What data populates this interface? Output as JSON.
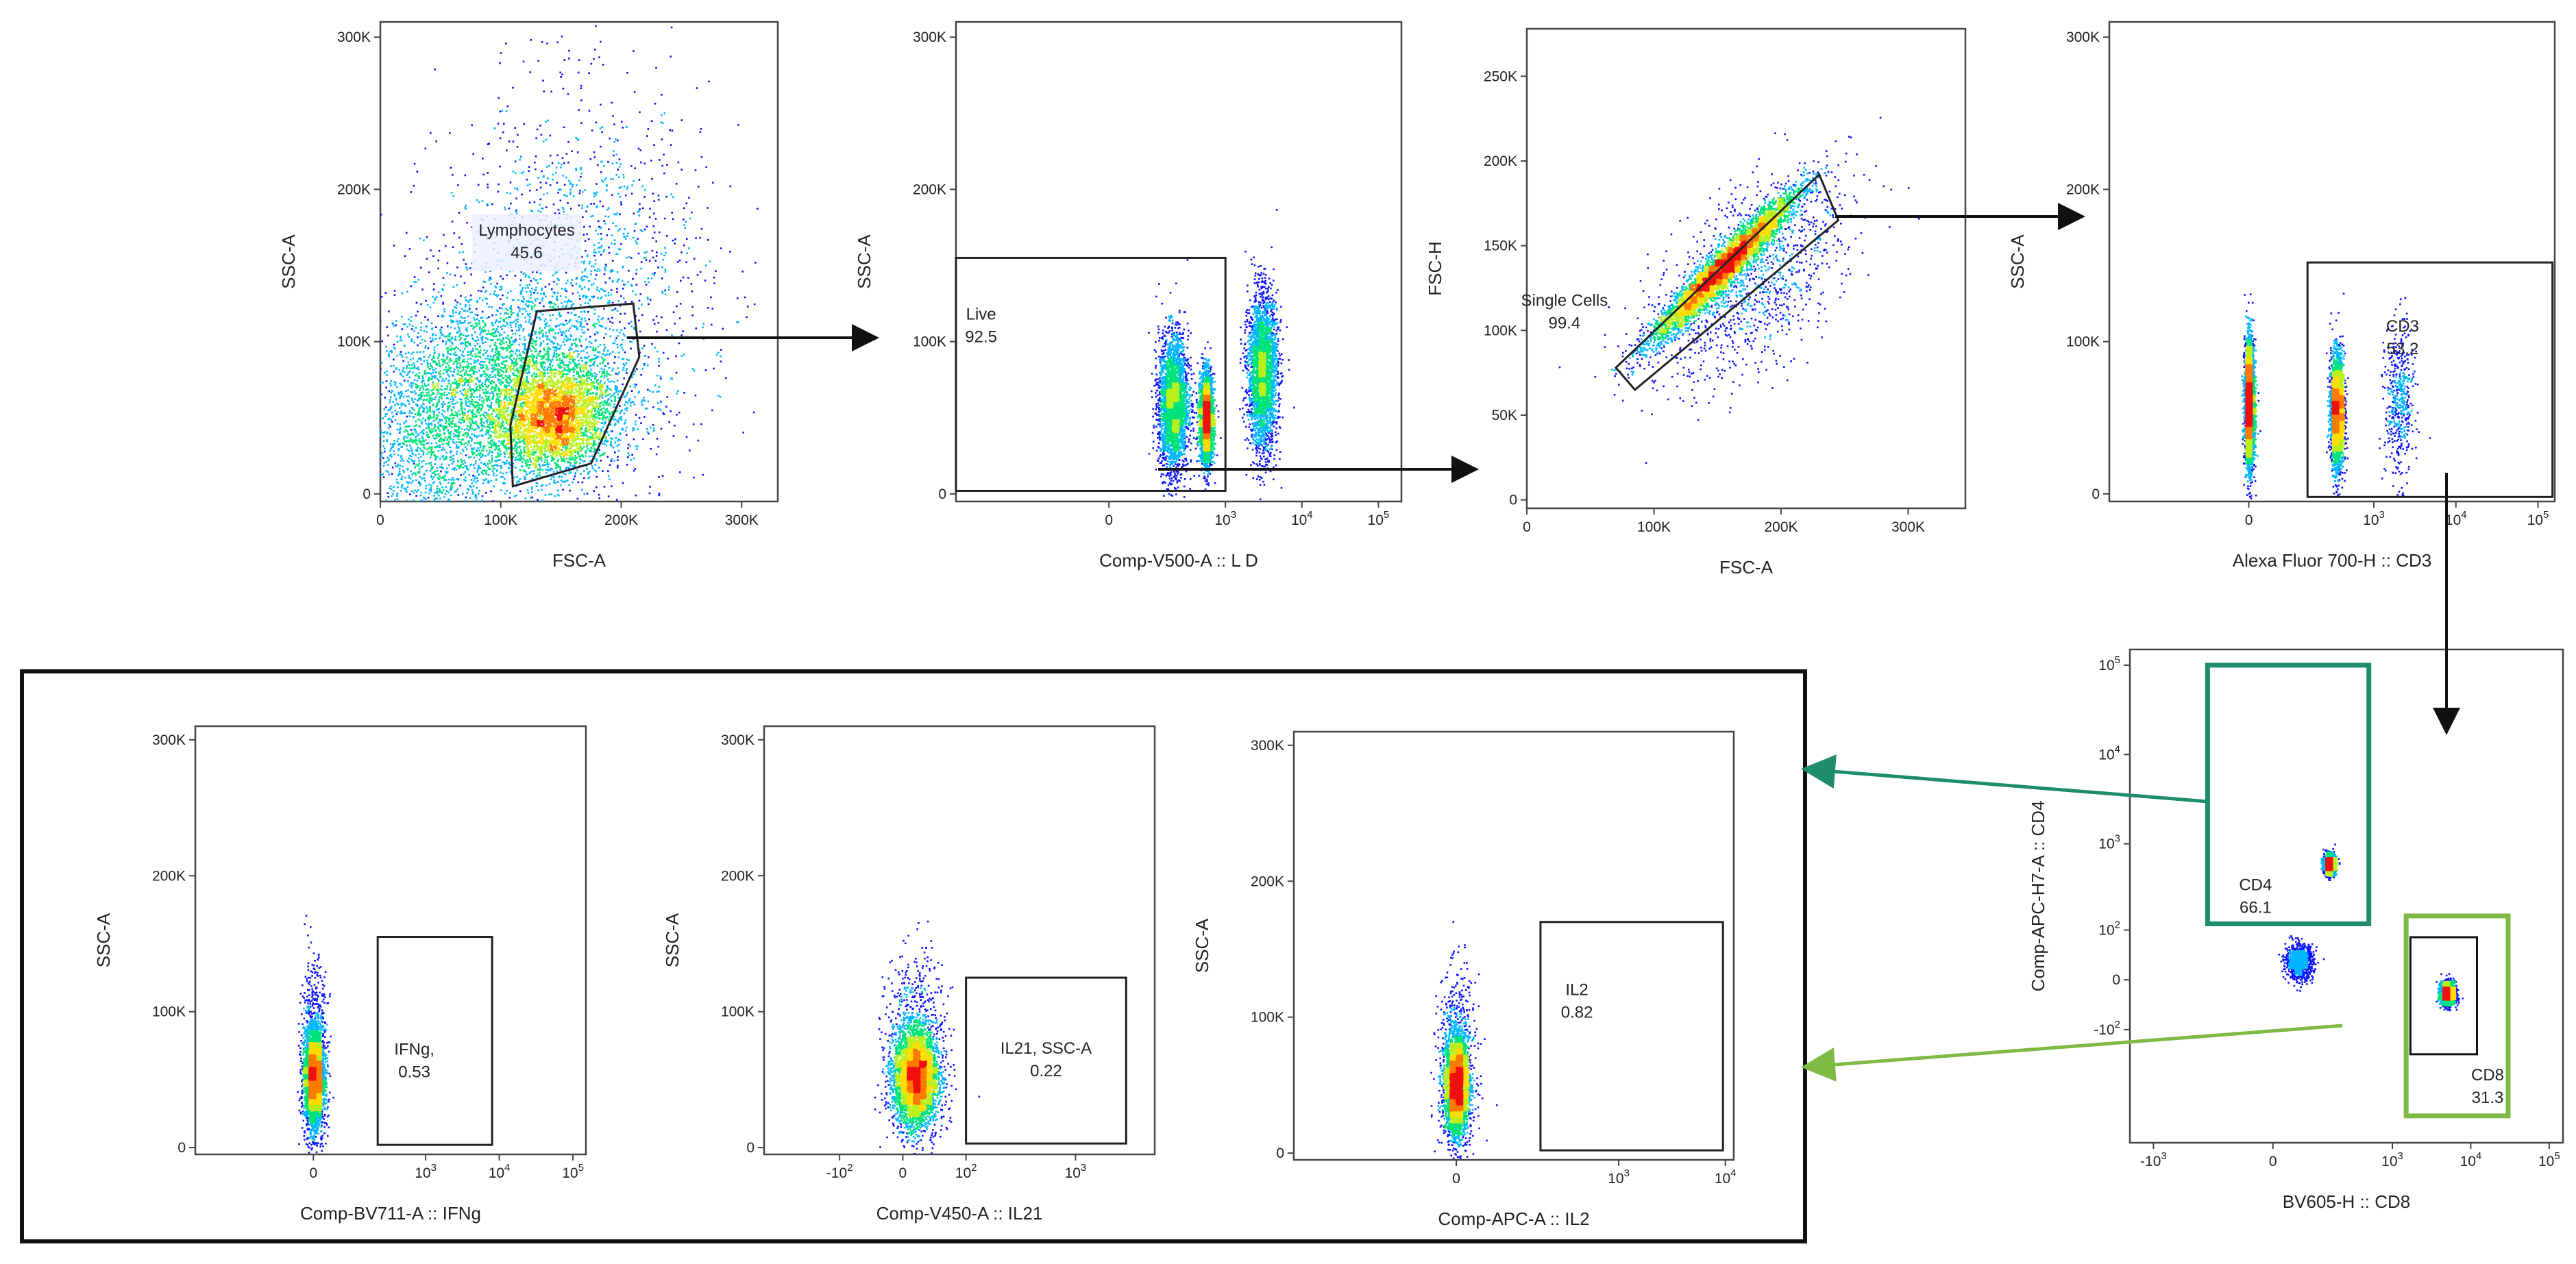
{
  "colors": {
    "density": [
      "#0a12ff",
      "#00b6ff",
      "#00e27a",
      "#b9ef1c",
      "#ffdd00",
      "#ff7a00",
      "#f01010"
    ],
    "arrow": "#111111",
    "cd4_gate": "#1f8c6e",
    "cd8_gate": "#7fba45"
  },
  "chart_data": [
    {
      "id": "p1",
      "type": "scatter",
      "xlabel": "FSC-A",
      "ylabel": "SSC-A",
      "xscale": "linear",
      "xlim": [
        0,
        330000
      ],
      "ylim": [
        -5000,
        310000
      ],
      "x_ticks": [
        {
          "v": 0,
          "label": "0"
        },
        {
          "v": 100000,
          "label": "100K"
        },
        {
          "v": 200000,
          "label": "200K"
        },
        {
          "v": 300000,
          "label": "300K"
        }
      ],
      "y_ticks": [
        {
          "v": 0,
          "label": "0"
        },
        {
          "v": 100000,
          "label": "100K"
        },
        {
          "v": 200000,
          "label": "200K"
        },
        {
          "v": 300000,
          "label": "300K"
        }
      ],
      "populations": [
        {
          "cx": 145000,
          "cy": 50000,
          "sx": 24000,
          "sy": 17000,
          "n": 3200,
          "rot": 0.2
        },
        {
          "cx": 95000,
          "cy": 70000,
          "sx": 48000,
          "sy": 32000,
          "n": 3000
        },
        {
          "cx": 160000,
          "cy": 130000,
          "sx": 55000,
          "sy": 65000,
          "n": 1800
        },
        {
          "cx": 40000,
          "cy": 30000,
          "sx": 30000,
          "sy": 35000,
          "n": 1200
        }
      ],
      "gate": {
        "name": "Lymphocytes",
        "value": "45.6",
        "shape": "polygon",
        "points": [
          [
            130000,
            120000
          ],
          [
            210000,
            125000
          ],
          [
            215000,
            90000
          ],
          [
            175000,
            20000
          ],
          [
            110000,
            5000
          ],
          [
            108000,
            45000
          ]
        ]
      }
    },
    {
      "id": "p2",
      "type": "scatter",
      "xlabel": "Comp-V500-A :: L  D",
      "ylabel": "SSC-A",
      "xscale": "biex",
      "xlim": [
        -3000,
        200000
      ],
      "ylim": [
        -5000,
        310000
      ],
      "x_ticks": [
        {
          "v": 0,
          "label": "0"
        },
        {
          "v": 1000,
          "label": "10",
          "exp": "3"
        },
        {
          "v": 10000,
          "label": "10",
          "exp": "4"
        },
        {
          "v": 100000,
          "label": "10",
          "exp": "5"
        }
      ],
      "y_ticks": [
        {
          "v": 0,
          "label": "0"
        },
        {
          "v": 100000,
          "label": "100K"
        },
        {
          "v": 200000,
          "label": "200K"
        },
        {
          "v": 300000,
          "label": "300K"
        }
      ],
      "populations": [
        {
          "cx": 550,
          "cy": 50000,
          "sx": 0.1,
          "sy": 14000,
          "n": 3200
        },
        {
          "cx": 200,
          "cy": 60000,
          "sx": 0.22,
          "sy": 22000,
          "n": 3000
        },
        {
          "cx": 3000,
          "cy": 80000,
          "sx": 0.22,
          "sy": 25000,
          "n": 3000
        }
      ],
      "gate": {
        "name": "Live",
        "value": "92.5",
        "shape": "rect",
        "x": [
          -3000,
          1000
        ],
        "y": [
          2000,
          155000
        ]
      }
    },
    {
      "id": "p3",
      "type": "scatter",
      "xlabel": "FSC-A",
      "ylabel": "FSC-H",
      "xscale": "linear",
      "xlim": [
        0,
        345000
      ],
      "ylim": [
        -5000,
        278000
      ],
      "x_ticks": [
        {
          "v": 0,
          "label": "0"
        },
        {
          "v": 100000,
          "label": "100K"
        },
        {
          "v": 200000,
          "label": "200K"
        },
        {
          "v": 300000,
          "label": "300K"
        }
      ],
      "y_ticks": [
        {
          "v": 0,
          "label": "0"
        },
        {
          "v": 50000,
          "label": "50K"
        },
        {
          "v": 100000,
          "label": "100K"
        },
        {
          "v": 150000,
          "label": "150K"
        },
        {
          "v": 200000,
          "label": "200K"
        },
        {
          "v": 250000,
          "label": "250K"
        }
      ],
      "populations": [
        {
          "cx": 155000,
          "cy": 138000,
          "sx": 38000,
          "sy": 4500,
          "n": 5000,
          "rot": 0.75
        },
        {
          "cx": 175000,
          "cy": 130000,
          "sx": 45000,
          "sy": 22000,
          "n": 1200,
          "rot": 0.75
        }
      ],
      "gate": {
        "name": "Single Cells",
        "value": "99.4",
        "shape": "polygon",
        "points": [
          [
            70000,
            78000
          ],
          [
            85000,
            65000
          ],
          [
            245000,
            165000
          ],
          [
            230000,
            192000
          ]
        ]
      }
    },
    {
      "id": "p4",
      "type": "scatter",
      "xlabel": "Alexa Fluor 700-H :: CD3",
      "ylabel": "SSC-A",
      "xscale": "biex",
      "xlim": [
        -1500,
        160000
      ],
      "ylim": [
        -5000,
        310000
      ],
      "x_ticks": [
        {
          "v": 0,
          "label": "0"
        },
        {
          "v": 1000,
          "label": "10",
          "exp": "3"
        },
        {
          "v": 10000,
          "label": "10",
          "exp": "4"
        },
        {
          "v": 100000,
          "label": "10",
          "exp": "5"
        }
      ],
      "y_ticks": [
        {
          "v": 0,
          "label": "0"
        },
        {
          "v": 100000,
          "label": "100K"
        },
        {
          "v": 200000,
          "label": "200K"
        },
        {
          "v": 300000,
          "label": "300K"
        }
      ],
      "populations": [
        {
          "cx": 0,
          "cy": 60000,
          "sx": 0.07,
          "sy": 20000,
          "n": 3200
        },
        {
          "cx": 350,
          "cy": 55000,
          "sx": 0.09,
          "sy": 18000,
          "n": 3200
        },
        {
          "cx": 2000,
          "cy": 60000,
          "sx": 0.2,
          "sy": 25000,
          "n": 500
        }
      ],
      "gate": {
        "name": "CD3",
        "value": "53.2",
        "shape": "rect",
        "x": [
          150,
          150000
        ],
        "y": [
          -2000,
          152000
        ]
      }
    },
    {
      "id": "p5",
      "type": "scatter",
      "xlabel": "BV605-H :: CD8",
      "ylabel": "Comp-APC-H7-A :: CD4",
      "xscale": "biex",
      "yscale": "biex",
      "xlim": [
        -2000,
        150000
      ],
      "ylim": [
        -2000,
        150000
      ],
      "x_ticks": [
        {
          "v": -1000,
          "label": "-10",
          "exp": "3"
        },
        {
          "v": 0,
          "label": "0"
        },
        {
          "v": 1000,
          "label": "10",
          "exp": "3"
        },
        {
          "v": 10000,
          "label": "10",
          "exp": "4"
        },
        {
          "v": 100000,
          "label": "10",
          "exp": "5"
        }
      ],
      "y_ticks": [
        {
          "v": -100,
          "label": "-10",
          "exp": "2"
        },
        {
          "v": 0,
          "label": "0"
        },
        {
          "v": 100,
          "label": "10",
          "exp": "2"
        },
        {
          "v": 1000,
          "label": "10",
          "exp": "3"
        },
        {
          "v": 10000,
          "label": "10",
          "exp": "4"
        },
        {
          "v": 100000,
          "label": "10",
          "exp": "5"
        }
      ],
      "populations": [
        {
          "cx": 150,
          "cy": 600,
          "sx": 0.08,
          "sy": 0.12,
          "n": 2500
        },
        {
          "cx": 5000,
          "cy": -20,
          "sx": 0.1,
          "sy": 0.14,
          "n": 3000
        },
        {
          "cx": 50,
          "cy": 30,
          "sx": 0.2,
          "sy": 0.22,
          "n": 900
        }
      ],
      "gates": [
        {
          "name": "CD4",
          "value": "66.1",
          "shape": "rect",
          "x": [
            -200,
            500
          ],
          "y": [
            120,
            100000
          ],
          "color": "cd4_gate"
        },
        {
          "name": "CD8",
          "value": "31.3",
          "shape": "rect",
          "x": [
            1500,
            30000
          ],
          "y": [
            -1000,
            150
          ],
          "color": "cd8_gate"
        },
        {
          "name": "",
          "value": "",
          "shape": "rect",
          "x": [
            1700,
            12000
          ],
          "y": [
            -200,
            80
          ],
          "color": "arrow"
        }
      ]
    },
    {
      "id": "p6",
      "type": "scatter",
      "xlabel": "Comp-BV711-A :: IFNg",
      "ylabel": "SSC-A",
      "xscale": "biex",
      "xlim": [
        -1200,
        150000
      ],
      "ylim": [
        -5000,
        310000
      ],
      "x_ticks": [
        {
          "v": 0,
          "label": "0"
        },
        {
          "v": 1000,
          "label": "10",
          "exp": "3"
        },
        {
          "v": 10000,
          "label": "10",
          "exp": "4"
        },
        {
          "v": 100000,
          "label": "10",
          "exp": "5"
        }
      ],
      "y_ticks": [
        {
          "v": 0,
          "label": "0"
        },
        {
          "v": 100000,
          "label": "100K"
        },
        {
          "v": 200000,
          "label": "200K"
        },
        {
          "v": 300000,
          "label": "300K"
        }
      ],
      "populations": [
        {
          "cx": 0,
          "cy": 52000,
          "sx": 0.14,
          "sy": 16000,
          "n": 4000
        },
        {
          "cx": 0,
          "cy": 65000,
          "sx": 0.2,
          "sy": 35000,
          "n": 800
        }
      ],
      "gate": {
        "name": "IFNg,",
        "value": "0.53",
        "shape": "rect",
        "x": [
          220,
          8000
        ],
        "y": [
          2000,
          155000
        ]
      }
    },
    {
      "id": "p7",
      "type": "scatter",
      "xlabel": "Comp-V450-A :: IL21",
      "ylabel": "SSC-A",
      "xscale": "biex",
      "xlim": [
        -500,
        5000
      ],
      "ylim": [
        -5000,
        310000
      ],
      "x_ticks": [
        {
          "v": -100,
          "label": "-10",
          "exp": "2"
        },
        {
          "v": 0,
          "label": "0"
        },
        {
          "v": 100,
          "label": "10",
          "exp": "2"
        },
        {
          "v": 1000,
          "label": "10",
          "exp": "3"
        }
      ],
      "y_ticks": [
        {
          "v": 0,
          "label": "0"
        },
        {
          "v": 100000,
          "label": "100K"
        },
        {
          "v": 200000,
          "label": "200K"
        },
        {
          "v": 300000,
          "label": "300K"
        }
      ],
      "populations": [
        {
          "cx": 15,
          "cy": 52000,
          "sx": 0.22,
          "sy": 17000,
          "n": 4000
        },
        {
          "cx": 15,
          "cy": 70000,
          "sx": 0.3,
          "sy": 35000,
          "n": 900
        }
      ],
      "gate": {
        "name": "IL21, SSC-A",
        "value": "0.22",
        "shape": "rect",
        "x": [
          100,
          2800
        ],
        "y": [
          3000,
          125000
        ]
      }
    },
    {
      "id": "p8",
      "type": "scatter",
      "xlabel": "Comp-APC-A :: IL2",
      "ylabel": "SSC-A",
      "xscale": "biex",
      "xlim": [
        -1000,
        12000
      ],
      "ylim": [
        -5000,
        310000
      ],
      "x_ticks": [
        {
          "v": 0,
          "label": "0"
        },
        {
          "v": 1000,
          "label": "10",
          "exp": "3"
        },
        {
          "v": 10000,
          "label": "10",
          "exp": "4"
        }
      ],
      "y_ticks": [
        {
          "v": 0,
          "label": "0"
        },
        {
          "v": 100000,
          "label": "100K"
        },
        {
          "v": 200000,
          "label": "200K"
        },
        {
          "v": 300000,
          "label": "300K"
        }
      ],
      "populations": [
        {
          "cx": 0,
          "cy": 50000,
          "sx": 0.12,
          "sy": 17000,
          "n": 4000
        },
        {
          "cx": 0,
          "cy": 65000,
          "sx": 0.2,
          "sy": 32000,
          "n": 800
        }
      ],
      "gate": {
        "name": "IL2",
        "value": "0.82",
        "shape": "rect",
        "x": [
          180,
          9500
        ],
        "y": [
          2000,
          170000
        ]
      }
    }
  ]
}
